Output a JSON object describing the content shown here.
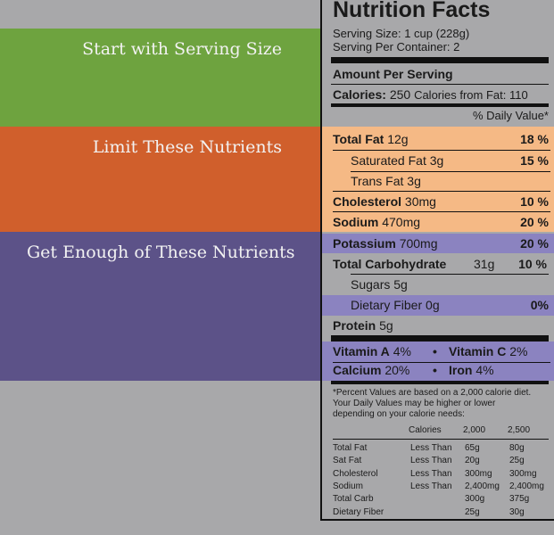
{
  "callouts": {
    "serving": "Start with Serving Size",
    "limit": "Limit These Nutrients",
    "enough": "Get Enough of These Nutrients"
  },
  "colors": {
    "green": "#6ea33f",
    "orange": "#d05f2c",
    "purple": "#5c5288",
    "orange_highlight": "#f5b985",
    "purple_highlight": "#8b83c0"
  },
  "label": {
    "title": "Nutrition Facts",
    "serving_size": "Serving Size: 1 cup (228g)",
    "servings_per_container": "Serving Per Container: 2",
    "amount_per_serving": "Amount Per Serving",
    "calories_label": "Calories:",
    "calories_value": "250",
    "calories_fat": "Calories from Fat: 110",
    "dv_header": "% Daily Value*",
    "total_fat": {
      "name": "Total Fat",
      "amount": "12g",
      "dv": "18 %"
    },
    "saturated_fat": {
      "name": "Saturated Fat",
      "amount": "3g",
      "dv": "15 %"
    },
    "trans_fat": {
      "name": "Trans Fat",
      "amount": "3g"
    },
    "cholesterol": {
      "name": "Cholesterol",
      "amount": "30mg",
      "dv": "10 %"
    },
    "sodium": {
      "name": "Sodium",
      "amount": "470mg",
      "dv": "20 %"
    },
    "potassium": {
      "name": "Potassium",
      "amount": "700mg",
      "dv": "20 %"
    },
    "total_carb": {
      "name": "Total Carbohydrate",
      "amount": "31g",
      "dv": "10 %"
    },
    "sugars": {
      "name": "Sugars",
      "amount": "5g"
    },
    "fiber": {
      "name": "Dietary Fiber",
      "amount": "0g",
      "dv": "0%"
    },
    "protein": {
      "name": "Protein",
      "amount": "5g"
    },
    "vitamin_a": {
      "name": "Vitamin A",
      "dv": "4%"
    },
    "vitamin_c": {
      "name": "Vitamin C",
      "dv": "2%"
    },
    "calcium": {
      "name": "Calcium",
      "dv": "20%"
    },
    "iron": {
      "name": "Iron",
      "dv": "4%"
    },
    "bullet": "•",
    "footnote": [
      "*Percent Values are based on a 2,000 calorie diet.",
      "Your Daily Values may be higher or lower",
      "depending on your calorie needs:"
    ],
    "table_header": {
      "calories": "Calories",
      "c2000": "2,000",
      "c2500": "2,500"
    },
    "table_rows": [
      {
        "name": "Total Fat",
        "qual": "Less Than",
        "v1": "65g",
        "v2": "80g"
      },
      {
        "name": "Sat Fat",
        "qual": "Less Than",
        "v1": "20g",
        "v2": "25g"
      },
      {
        "name": "Cholesterol",
        "qual": "Less Than",
        "v1": "300mg",
        "v2": "300mg"
      },
      {
        "name": "Sodium",
        "qual": "Less Than",
        "v1": "2,400mg",
        "v2": "2,400mg"
      },
      {
        "name": "Total Carb",
        "qual": "",
        "v1": "300g",
        "v2": "375g"
      },
      {
        "name": "Dietary Fiber",
        "qual": "",
        "v1": "25g",
        "v2": "30g"
      }
    ]
  }
}
